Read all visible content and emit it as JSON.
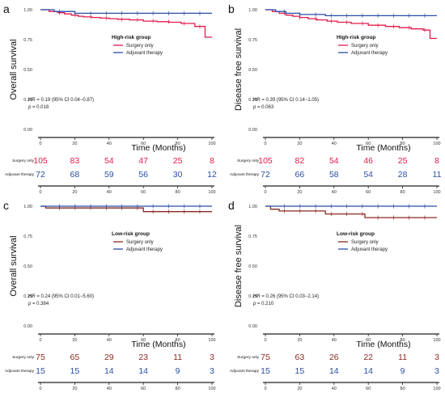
{
  "chart_data": [
    {
      "type": "line",
      "panel_label": "a",
      "ylabel": "Overall survival",
      "xlabel": "Time (Months)",
      "xlim": [
        0,
        100
      ],
      "ylim": [
        0,
        1
      ],
      "x_ticks": [
        "0",
        "20",
        "40",
        "60",
        "80",
        "100"
      ],
      "y_ticks": [
        "0.00",
        "0.25",
        "0.50",
        "0.75",
        "1.00"
      ],
      "legend_title": "High-risk group",
      "series": [
        {
          "name": "Surgery only",
          "color": "#e41a4a",
          "x": [
            0,
            5,
            10,
            14,
            18,
            22,
            25,
            30,
            35,
            40,
            45,
            52,
            60,
            68,
            75,
            82,
            90,
            96,
            100
          ],
          "y": [
            1.0,
            0.985,
            0.975,
            0.965,
            0.955,
            0.945,
            0.94,
            0.935,
            0.93,
            0.925,
            0.92,
            0.915,
            0.905,
            0.9,
            0.895,
            0.885,
            0.86,
            0.77,
            0.77
          ]
        },
        {
          "name": "Adjuvant therapy",
          "color": "#2a4ea6",
          "x": [
            0,
            8,
            20,
            100
          ],
          "y": [
            1.0,
            0.985,
            0.97,
            0.97
          ]
        }
      ],
      "annotation_hr": "HR = 0.19 (95% CI 0.04−0.87)",
      "annotation_p": "= 0.018",
      "risk_table": {
        "rows": [
          {
            "label": "Surgery only",
            "color": "#e41a4a",
            "values": [
              "105",
              "83",
              "54",
              "47",
              "25",
              "8"
            ]
          },
          {
            "label": "Adjuvant therapy",
            "color": "#2a4ea6",
            "values": [
              "72",
              "68",
              "59",
              "56",
              "30",
              "12"
            ]
          }
        ],
        "x_ticks": [
          "0",
          "20",
          "40",
          "60",
          "80",
          "100"
        ]
      }
    },
    {
      "type": "line",
      "panel_label": "b",
      "ylabel": "Disease free survival",
      "xlabel": "Time (Months)",
      "xlim": [
        0,
        100
      ],
      "ylim": [
        0,
        1
      ],
      "x_ticks": [
        "0",
        "20",
        "40",
        "60",
        "80",
        "100"
      ],
      "y_ticks": [
        "0.00",
        "0.25",
        "0.50",
        "0.75",
        "1.00"
      ],
      "legend_title": "High-risk group",
      "series": [
        {
          "name": "Surgery only",
          "color": "#e41a4a",
          "x": [
            0,
            4,
            8,
            12,
            16,
            20,
            25,
            30,
            36,
            42,
            50,
            60,
            70,
            78,
            85,
            92,
            96,
            100
          ],
          "y": [
            1.0,
            0.985,
            0.97,
            0.955,
            0.945,
            0.935,
            0.925,
            0.915,
            0.905,
            0.895,
            0.885,
            0.87,
            0.86,
            0.85,
            0.84,
            0.83,
            0.76,
            0.76
          ]
        },
        {
          "name": "Adjuvant therapy",
          "color": "#2a4ea6",
          "x": [
            0,
            6,
            12,
            20,
            35,
            100
          ],
          "y": [
            1.0,
            0.985,
            0.97,
            0.96,
            0.95,
            0.95
          ]
        }
      ],
      "annotation_hr": "HR = 0.39 (95% CI 0.14−1.05)",
      "annotation_p": "= 0.063",
      "risk_table": {
        "rows": [
          {
            "label": "Surgery only",
            "color": "#e41a4a",
            "values": [
              "105",
              "82",
              "54",
              "46",
              "25",
              "8"
            ]
          },
          {
            "label": "Adjuvant therapy",
            "color": "#2a4ea6",
            "values": [
              "72",
              "66",
              "58",
              "54",
              "28",
              "11"
            ]
          }
        ],
        "x_ticks": [
          "0",
          "20",
          "40",
          "60",
          "80",
          "100"
        ]
      }
    },
    {
      "type": "line",
      "panel_label": "c",
      "ylabel": "Overall survival",
      "xlabel": "Time (Months)",
      "xlim": [
        0,
        100
      ],
      "ylim": [
        0,
        1
      ],
      "x_ticks": [
        "0",
        "20",
        "40",
        "60",
        "80",
        "100"
      ],
      "y_ticks": [
        "0.00",
        "0.25",
        "0.50",
        "0.75",
        "1.00"
      ],
      "legend_title": "Low-risk group",
      "series": [
        {
          "name": "Surgery only",
          "color": "#8b2a22",
          "x": [
            0,
            3,
            60,
            100
          ],
          "y": [
            1.0,
            0.985,
            0.955,
            0.955
          ]
        },
        {
          "name": "Adjuvant therapy",
          "color": "#2a4ea6",
          "x": [
            0,
            100
          ],
          "y": [
            1.0,
            1.0
          ]
        }
      ],
      "annotation_hr": "HR = 0.24 (95% CI 0.01−5.60)",
      "annotation_p": "= 0.384",
      "risk_table": {
        "rows": [
          {
            "label": "Surgery only",
            "color": "#8b2a22",
            "values": [
              "75",
              "65",
              "29",
              "23",
              "11",
              "3"
            ]
          },
          {
            "label": "Adjuvant therapy",
            "color": "#2a4ea6",
            "values": [
              "15",
              "15",
              "14",
              "14",
              "9",
              "3"
            ]
          }
        ],
        "x_ticks": [
          "0",
          "20",
          "40",
          "60",
          "80",
          "100"
        ]
      }
    },
    {
      "type": "line",
      "panel_label": "d",
      "ylabel": "Disease free survival",
      "xlabel": "Time (Months)",
      "xlim": [
        0,
        100
      ],
      "ylim": [
        0,
        1
      ],
      "x_ticks": [
        "0",
        "20",
        "40",
        "60",
        "80",
        "100"
      ],
      "y_ticks": [
        "0.00",
        "0.25",
        "0.50",
        "0.75",
        "1.00"
      ],
      "legend_title": "Low-risk group",
      "series": [
        {
          "name": "Surgery only",
          "color": "#8b2a22",
          "x": [
            0,
            3,
            8,
            35,
            58,
            100
          ],
          "y": [
            1.0,
            0.975,
            0.96,
            0.935,
            0.905,
            0.905
          ]
        },
        {
          "name": "Adjuvant therapy",
          "color": "#2a4ea6",
          "x": [
            0,
            100
          ],
          "y": [
            1.0,
            1.0
          ]
        }
      ],
      "annotation_hr": "HR = 0.26 (95% CI 0.03−2.14)",
      "annotation_p": "= 0.210",
      "risk_table": {
        "rows": [
          {
            "label": "Surgery only",
            "color": "#8b2a22",
            "values": [
              "75",
              "63",
              "26",
              "22",
              "11",
              "3"
            ]
          },
          {
            "label": "Adjuvant therapy",
            "color": "#2a4ea6",
            "values": [
              "15",
              "15",
              "14",
              "14",
              "9",
              "3"
            ]
          }
        ],
        "x_ticks": [
          "0",
          "20",
          "40",
          "60",
          "80",
          "100"
        ]
      }
    }
  ],
  "p_symbol": "p"
}
